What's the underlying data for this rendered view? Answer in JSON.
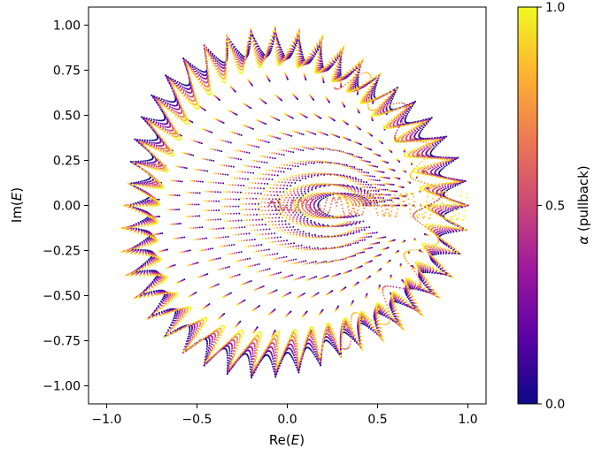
{
  "chart_data": {
    "type": "scatter",
    "title": "",
    "xlabel_main": "Re(",
    "xlabel_var": "E",
    "xlabel_close": ")",
    "ylabel_main": "Im(",
    "ylabel_var": "E",
    "ylabel_close": ")",
    "xlim": [
      -1.1,
      1.1
    ],
    "ylim": [
      -1.1,
      1.1
    ],
    "xticks": [
      -1.0,
      -0.5,
      0.0,
      0.5,
      1.0
    ],
    "xtick_labels": [
      "−1.0",
      "−0.5",
      "0.0",
      "0.5",
      "1.0"
    ],
    "yticks": [
      1.0,
      0.75,
      0.5,
      0.25,
      0.0,
      -0.25,
      -0.5,
      -0.75,
      -1.0
    ],
    "ytick_labels": [
      "1.00",
      "0.75",
      "0.50",
      "0.25",
      "0.00",
      "−0.25",
      "−0.50",
      "−0.75",
      "−1.00"
    ],
    "grid": false,
    "colorbar": {
      "label_symbol": "α",
      "label_text": " (pullback)",
      "range": [
        0.0,
        1.0
      ],
      "ticks": [
        0.0,
        0.5,
        1.0
      ],
      "tick_labels": [
        "0.0",
        "0.5",
        "1.0"
      ],
      "colormap": [
        "#0d0887",
        "#5c01a6",
        "#9c179e",
        "#cc4778",
        "#ed7953",
        "#fdb42f",
        "#f0f921"
      ]
    },
    "series": [
      {
        "description_free": true,
        "spectrum": {
          "teeth": 46,
          "alpha_steps": 7,
          "points_per_curve": 26,
          "outer_radius": 1.0,
          "tooth_depth": 0.22,
          "alpha_values": [
            0.0,
            0.17,
            0.33,
            0.5,
            0.67,
            0.83,
            1.0
          ]
        }
      }
    ]
  }
}
